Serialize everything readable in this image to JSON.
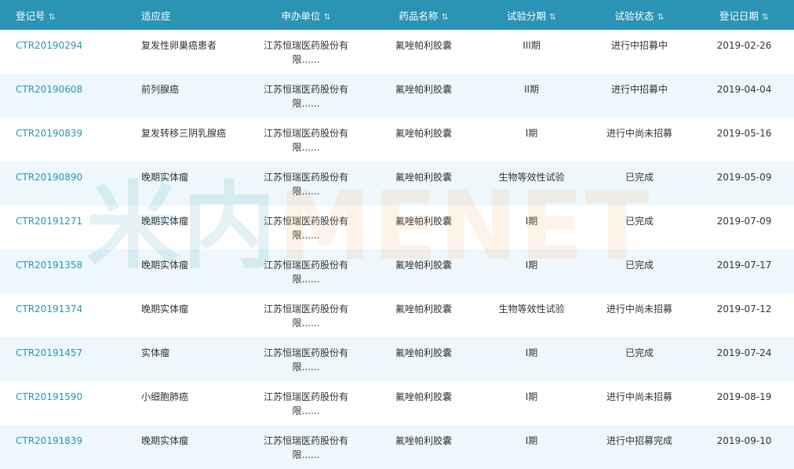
{
  "headers": [
    {
      "label": "登记号",
      "sortable": true
    },
    {
      "label": "适应症",
      "sortable": false
    },
    {
      "label": "申办单位",
      "sortable": true
    },
    {
      "label": "药品名称",
      "sortable": true
    },
    {
      "label": "试验分期",
      "sortable": true
    },
    {
      "label": "试验状态",
      "sortable": true
    },
    {
      "label": "登记日期",
      "sortable": true
    }
  ],
  "watermark": {
    "cn": "米内",
    "en": "MENET"
  },
  "rows": [
    [
      "CTR20190294",
      "复发性卵巢癌患者",
      "江苏恒瑞医药股份有限......",
      "氟唑帕利胶囊",
      "III期",
      "进行中招募中",
      "2019-02-26"
    ],
    [
      "CTR20190608",
      "前列腺癌",
      "江苏恒瑞医药股份有限......",
      "氟唑帕利胶囊",
      "II期",
      "进行中招募中",
      "2019-04-04"
    ],
    [
      "CTR20190839",
      "复发转移三阴乳腺癌",
      "江苏恒瑞医药股份有限......",
      "氟唑帕利胶囊",
      "I期",
      "进行中尚未招募",
      "2019-05-16"
    ],
    [
      "CTR20190890",
      "晚期实体瘤",
      "江苏恒瑞医药股份有限......",
      "氟唑帕利胶囊",
      "生物等效性试验",
      "已完成",
      "2019-05-09"
    ],
    [
      "CTR20191271",
      "晚期实体瘤",
      "江苏恒瑞医药股份有限......",
      "氟唑帕利胶囊",
      "I期",
      "已完成",
      "2019-07-09"
    ],
    [
      "CTR20191358",
      "晚期实体瘤",
      "江苏恒瑞医药股份有限......",
      "氟唑帕利胶囊",
      "I期",
      "已完成",
      "2019-07-17"
    ],
    [
      "CTR20191374",
      "晚期实体瘤",
      "江苏恒瑞医药股份有限......",
      "氟唑帕利胶囊",
      "生物等效性试验",
      "进行中尚未招募",
      "2019-07-12"
    ],
    [
      "CTR20191457",
      "实体瘤",
      "江苏恒瑞医药股份有限......",
      "氟唑帕利胶囊",
      "I期",
      "已完成",
      "2019-07-24"
    ],
    [
      "CTR20191590",
      "小细胞肺癌",
      "江苏恒瑞医药股份有限......",
      "氟唑帕利胶囊",
      "I期",
      "进行中尚未招募",
      "2019-08-19"
    ],
    [
      "CTR20191839",
      "晚期实体瘤",
      "江苏恒瑞医药股份有限......",
      "氟唑帕利胶囊",
      "I期",
      "进行中招募完成",
      "2019-09-10"
    ]
  ]
}
